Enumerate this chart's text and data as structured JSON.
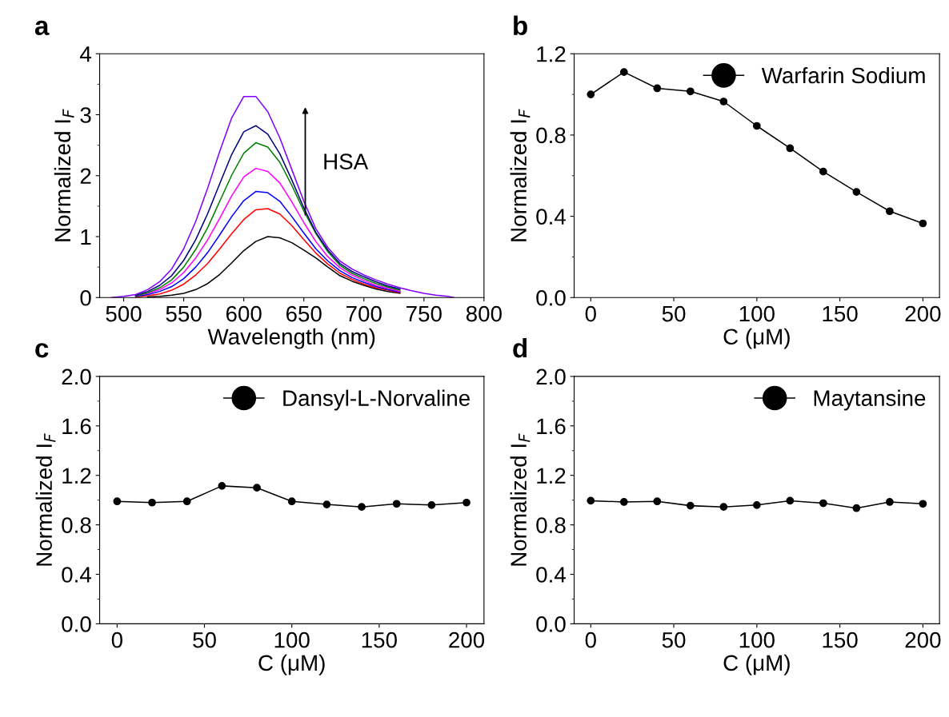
{
  "chart_data": [
    {
      "type": "line",
      "title": "a",
      "xlabel": "Wavelength (nm)",
      "ylabel": "Normalized I$_{F}$",
      "annotations": [
        "HSA"
      ],
      "x": [
        490,
        500,
        510,
        520,
        530,
        540,
        550,
        560,
        570,
        580,
        590,
        600,
        610,
        620,
        630,
        640,
        650,
        660,
        670,
        680,
        690,
        700,
        710,
        720,
        730,
        740,
        750,
        760,
        770,
        775
      ],
      "series": [
        {
          "color": "#000000",
          "values": [
            null,
            null,
            null,
            0.01,
            0.02,
            0.04,
            0.07,
            0.13,
            0.23,
            0.38,
            0.57,
            0.77,
            0.92,
            1.0,
            0.98,
            0.9,
            0.78,
            0.65,
            0.5,
            0.36,
            0.27,
            0.2,
            0.14,
            0.1,
            0.07,
            null,
            null,
            null,
            null,
            null
          ]
        },
        {
          "color": "#ff0000",
          "values": [
            null,
            null,
            0.01,
            0.03,
            0.06,
            0.12,
            0.22,
            0.37,
            0.56,
            0.8,
            1.05,
            1.28,
            1.44,
            1.46,
            1.37,
            1.18,
            0.95,
            0.73,
            0.55,
            0.4,
            0.3,
            0.22,
            0.16,
            0.12,
            0.08,
            null,
            null,
            null,
            null,
            null
          ]
        },
        {
          "color": "#0000ff",
          "values": [
            null,
            null,
            0.02,
            0.05,
            0.1,
            0.18,
            0.31,
            0.5,
            0.74,
            1.03,
            1.33,
            1.59,
            1.74,
            1.72,
            1.58,
            1.33,
            1.06,
            0.8,
            0.6,
            0.44,
            0.33,
            0.25,
            0.18,
            0.13,
            0.09,
            null,
            null,
            null,
            null,
            null
          ]
        },
        {
          "color": "#ff00ff",
          "values": [
            null,
            null,
            0.03,
            0.07,
            0.13,
            0.24,
            0.41,
            0.65,
            0.95,
            1.3,
            1.67,
            1.98,
            2.12,
            2.07,
            1.88,
            1.57,
            1.23,
            0.92,
            0.67,
            0.49,
            0.37,
            0.28,
            0.2,
            0.15,
            0.1,
            null,
            null,
            null,
            null,
            null
          ]
        },
        {
          "color": "#008000",
          "values": [
            null,
            null,
            0.03,
            0.08,
            0.16,
            0.29,
            0.5,
            0.79,
            1.15,
            1.58,
            2.01,
            2.37,
            2.54,
            2.47,
            2.22,
            1.84,
            1.42,
            1.05,
            0.75,
            0.53,
            0.4,
            0.31,
            0.23,
            0.17,
            0.12,
            null,
            null,
            null,
            null,
            null
          ]
        },
        {
          "color": "#000080",
          "values": [
            null,
            null,
            0.04,
            0.1,
            0.2,
            0.36,
            0.61,
            0.95,
            1.38,
            1.87,
            2.35,
            2.72,
            2.82,
            2.68,
            2.36,
            1.93,
            1.47,
            1.07,
            0.78,
            0.56,
            0.43,
            0.34,
            0.26,
            0.19,
            0.14,
            null,
            null,
            null,
            null,
            null
          ]
        },
        {
          "color": "#8000ff",
          "values": [
            0,
            0.02,
            0.05,
            0.13,
            0.26,
            0.47,
            0.8,
            1.25,
            1.8,
            2.4,
            2.95,
            3.3,
            3.3,
            3.05,
            2.62,
            2.1,
            1.58,
            1.13,
            0.82,
            0.6,
            0.47,
            0.37,
            0.29,
            0.22,
            0.16,
            0.11,
            0.07,
            0.04,
            0.02,
            0
          ]
        }
      ],
      "xlim": [
        480,
        800
      ],
      "xticks": [
        500,
        550,
        600,
        650,
        700,
        750,
        800
      ],
      "ylim": [
        0,
        4
      ],
      "yticks": [
        0,
        1,
        2,
        3,
        4
      ],
      "legend": false
    },
    {
      "type": "line",
      "title": "b",
      "xlabel": "C (μM)",
      "ylabel": "Normalized I$_{F}$",
      "marker": "circle",
      "legend": "top right",
      "x": [
        0,
        20,
        40,
        60,
        80,
        100,
        120,
        140,
        160,
        180,
        200
      ],
      "series": [
        {
          "name": "Warfarin Sodium",
          "color": "#000000",
          "values": [
            1.0,
            1.11,
            1.03,
            1.015,
            0.965,
            0.845,
            0.735,
            0.62,
            0.52,
            0.425,
            0.365
          ]
        }
      ],
      "xlim": [
        -10,
        210
      ],
      "xticks": [
        0,
        50,
        100,
        150,
        200
      ],
      "ylim": [
        0,
        1.2
      ],
      "yticks": [
        {
          "value": 0,
          "label": "0.0"
        },
        {
          "value": 0.4,
          "label": "0.4"
        },
        {
          "value": 0.8,
          "label": "0.8"
        },
        {
          "value": 1.2,
          "label": "1.2"
        }
      ]
    },
    {
      "type": "line",
      "title": "c",
      "xlabel": "C (μM)",
      "ylabel": "Normalized I$_{F}$",
      "marker": "circle",
      "legend": "top right",
      "x": [
        0,
        20,
        40,
        60,
        80,
        100,
        120,
        140,
        160,
        180,
        200
      ],
      "series": [
        {
          "name": "Dansyl-L-Norvaline",
          "color": "#000000",
          "values": [
            0.99,
            0.98,
            0.99,
            1.115,
            1.1,
            0.99,
            0.965,
            0.945,
            0.97,
            0.96,
            0.98
          ]
        }
      ],
      "xlim": [
        -10,
        210
      ],
      "xticks": [
        0,
        50,
        100,
        150,
        200
      ],
      "ylim": [
        0,
        2.0
      ],
      "yticks": [
        {
          "value": 0,
          "label": "0.0"
        },
        {
          "value": 0.4,
          "label": "0.4"
        },
        {
          "value": 0.8,
          "label": "0.8"
        },
        {
          "value": 1.2,
          "label": "1.2"
        },
        {
          "value": 1.6,
          "label": "1.6"
        },
        {
          "value": 2.0,
          "label": "2.0"
        }
      ]
    },
    {
      "type": "line",
      "title": "d",
      "xlabel": "C (μM)",
      "ylabel": "Normalized I$_{F}$",
      "marker": "circle",
      "legend": "top right",
      "x": [
        0,
        20,
        40,
        60,
        80,
        100,
        120,
        140,
        160,
        180,
        200
      ],
      "series": [
        {
          "name": "Maytansine",
          "color": "#000000",
          "values": [
            0.995,
            0.985,
            0.99,
            0.955,
            0.945,
            0.96,
            0.995,
            0.975,
            0.935,
            0.985,
            0.97
          ]
        }
      ],
      "xlim": [
        -10,
        210
      ],
      "xticks": [
        0,
        50,
        100,
        150,
        200
      ],
      "ylim": [
        0,
        2.0
      ],
      "yticks": [
        {
          "value": 0,
          "label": "0.0"
        },
        {
          "value": 0.4,
          "label": "0.4"
        },
        {
          "value": 0.8,
          "label": "0.8"
        },
        {
          "value": 1.2,
          "label": "1.2"
        },
        {
          "value": 1.6,
          "label": "1.6"
        },
        {
          "value": 2.0,
          "label": "2.0"
        }
      ]
    }
  ]
}
